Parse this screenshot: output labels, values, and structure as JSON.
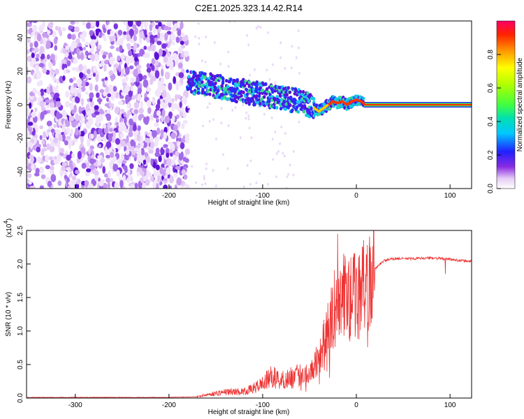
{
  "title": "C2E1.2025.323.14.42.R14",
  "chart_data": [
    {
      "type": "heatmap",
      "xlabel": "Height of straight line (km)",
      "ylabel": "Frequency (Hz)",
      "xlim": [
        -352,
        123
      ],
      "ylim": [
        -50,
        50
      ],
      "xticks": [
        -300,
        -200,
        -100,
        0,
        100
      ],
      "xtick_labels": [
        "-300",
        "-200",
        "-100",
        "0",
        "100"
      ],
      "yticks": [
        -40,
        -20,
        0,
        20,
        40
      ],
      "ytick_labels": [
        "-40",
        "-20",
        "0",
        "20",
        "40"
      ],
      "colorbar": {
        "label": "Normalized spectral amplitude",
        "range": [
          0,
          1
        ],
        "ticks": [
          0.0,
          0.2,
          0.4,
          0.6,
          0.8
        ],
        "tick_labels": [
          "0.0",
          "0.2",
          "0.4",
          "0.6",
          "0.8"
        ]
      },
      "ridge": {
        "x": [
          -180,
          -170,
          -160,
          -150,
          -140,
          -130,
          -120,
          -110,
          -100,
          -90,
          -80,
          -70,
          -60,
          -50,
          -45,
          -40,
          -35,
          -30,
          -25,
          -20,
          -15,
          -10,
          -5,
          0,
          5,
          10,
          30,
          60,
          90,
          123
        ],
        "freq": [
          14,
          13,
          12,
          11,
          10,
          9,
          8,
          7,
          6,
          5,
          4,
          3,
          2,
          0,
          -2,
          -4,
          -2,
          0,
          2,
          1,
          2,
          0,
          2,
          3,
          2,
          0,
          0,
          0,
          0,
          0
        ]
      }
    },
    {
      "type": "line",
      "xlabel": "Height of straight line (km)",
      "ylabel": "SNR (10 * v/v)",
      "multiplier_label": "(x10",
      "multiplier_exp": "4",
      "multiplier_close": ")",
      "xlim": [
        -352,
        123
      ],
      "ylim": [
        0,
        2.5
      ],
      "xticks": [
        -300,
        -200,
        -100,
        0,
        100
      ],
      "xtick_labels": [
        "-300",
        "-200",
        "-100",
        "0",
        "100"
      ],
      "yticks": [
        0,
        0.5,
        1.0,
        1.5,
        2.0,
        2.5
      ],
      "ytick_labels": [
        "0.0",
        "0.5",
        "1.0",
        "1.5",
        "2.0",
        "2.5"
      ],
      "series": [
        {
          "name": "SNR",
          "color": "#ee3333",
          "x": [
            -352,
            -300,
            -250,
            -200,
            -170,
            -160,
            -140,
            -120,
            -110,
            -100,
            -90,
            -80,
            -70,
            -60,
            -50,
            -45,
            -40,
            -35,
            -30,
            -25,
            -22,
            -20,
            -18,
            -15,
            -10,
            -5,
            0,
            5,
            10,
            15,
            20,
            25,
            30,
            40,
            60,
            80,
            100,
            110,
            123
          ],
          "y": [
            0.01,
            0.01,
            0.01,
            0.01,
            0.02,
            0.05,
            0.09,
            0.1,
            0.14,
            0.22,
            0.32,
            0.26,
            0.3,
            0.34,
            0.4,
            0.52,
            0.62,
            0.85,
            1.0,
            1.22,
            1.4,
            1.3,
            1.4,
            1.55,
            1.48,
            1.5,
            1.55,
            1.6,
            1.65,
            1.75,
            1.92,
            2.0,
            2.05,
            2.08,
            2.08,
            2.09,
            2.07,
            2.05,
            2.04
          ]
        }
      ],
      "annotations": [
        {
          "x": -20,
          "y": 2.45,
          "note": "spike"
        },
        {
          "x": 95,
          "y": 1.85,
          "note": "dip"
        }
      ]
    }
  ]
}
